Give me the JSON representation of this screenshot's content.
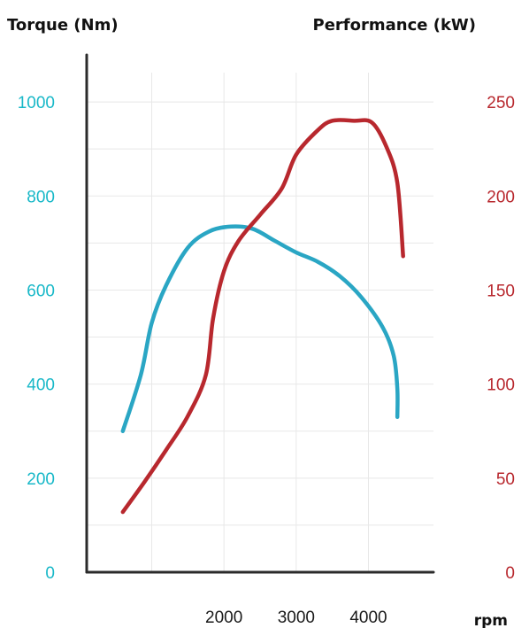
{
  "chart_data": {
    "type": "line",
    "left_axis": {
      "label": "Torque (Nm)",
      "ticks": [
        0,
        200,
        400,
        600,
        800,
        1000
      ],
      "range": [
        0,
        1100
      ],
      "color": "#18b8c8"
    },
    "right_axis": {
      "label": "Performance (kW)",
      "ticks": [
        0,
        50,
        100,
        150,
        200,
        250
      ],
      "range": [
        0,
        275
      ],
      "color": "#b8282e"
    },
    "x_axis": {
      "label": "rpm",
      "ticks": [
        2000,
        3000,
        4000
      ],
      "range": [
        100,
        4900
      ]
    },
    "grid": true,
    "series": [
      {
        "axis": "left",
        "color": "#2aa6c4",
        "points": [
          [
            600,
            300
          ],
          [
            850,
            420
          ],
          [
            1000,
            530
          ],
          [
            1200,
            610
          ],
          [
            1500,
            690
          ],
          [
            1800,
            725
          ],
          [
            2100,
            735
          ],
          [
            2400,
            730
          ],
          [
            2700,
            705
          ],
          [
            3000,
            680
          ],
          [
            3300,
            660
          ],
          [
            3600,
            630
          ],
          [
            3900,
            585
          ],
          [
            4200,
            520
          ],
          [
            4350,
            460
          ],
          [
            4400,
            390
          ],
          [
            4400,
            330
          ]
        ]
      },
      {
        "axis": "right",
        "color": "#b8282e",
        "points": [
          [
            600,
            32
          ],
          [
            900,
            48
          ],
          [
            1200,
            65
          ],
          [
            1500,
            83
          ],
          [
            1750,
            105
          ],
          [
            1850,
            135
          ],
          [
            2000,
            160
          ],
          [
            2200,
            176
          ],
          [
            2500,
            190
          ],
          [
            2800,
            204
          ],
          [
            3000,
            222
          ],
          [
            3300,
            235
          ],
          [
            3500,
            240
          ],
          [
            3800,
            240
          ],
          [
            4050,
            239
          ],
          [
            4250,
            226
          ],
          [
            4400,
            207
          ],
          [
            4480,
            168
          ]
        ]
      }
    ]
  }
}
